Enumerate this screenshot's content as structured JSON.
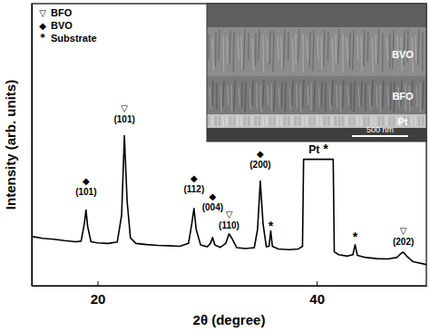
{
  "chart_data": {
    "type": "line",
    "xlabel": "2θ (degree)",
    "ylabel": "Intensity (arb. units)",
    "color": "#000000",
    "x": [
      14.0,
      15.0,
      16.0,
      17.0,
      18.0,
      18.5,
      18.8,
      18.95,
      19.1,
      19.4,
      20.0,
      21.0,
      21.8,
      22.2,
      22.45,
      22.7,
      23.0,
      23.5,
      24.5,
      25.5,
      26.5,
      27.5,
      28.3,
      28.6,
      28.8,
      29.0,
      29.4,
      30.0,
      30.3,
      30.5,
      30.7,
      31.2,
      31.7,
      32.0,
      32.3,
      32.7,
      33.5,
      34.3,
      34.6,
      34.85,
      35.1,
      35.4,
      35.65,
      35.8,
      35.95,
      36.5,
      37.5,
      38.3,
      38.7,
      38.8,
      41.5,
      41.6,
      42.0,
      42.8,
      43.3,
      43.5,
      43.7,
      44.5,
      45.5,
      46.5,
      47.3,
      47.7,
      47.9,
      48.2,
      48.8,
      50.0
    ],
    "values": [
      17.5,
      16.8,
      16.5,
      16.0,
      15.6,
      15.8,
      22,
      26.8,
      21,
      15.6,
      15.2,
      15.0,
      15.5,
      25,
      53.2,
      30,
      17,
      15,
      14.6,
      14.3,
      14.2,
      14.0,
      15.0,
      22,
      27.4,
      20,
      14.5,
      13.8,
      15,
      17.1,
      14.5,
      13.6,
      15,
      18.4,
      16.5,
      13.5,
      13.2,
      13.5,
      20,
      37.1,
      22,
      13.8,
      14,
      19.4,
      14,
      13,
      12.8,
      13,
      14,
      44.8,
      44.8,
      12,
      11,
      10.5,
      11,
      14.5,
      10.8,
      10,
      9.6,
      9.5,
      10,
      11.5,
      11.9,
      10.5,
      8.5,
      7.5
    ],
    "xlim": [
      14,
      50
    ],
    "xticks": [
      20,
      40
    ],
    "ylim": [
      0,
      100
    ],
    "tick_labels": "x",
    "grid": false,
    "legend": "upper left",
    "phases": [
      {
        "symbol": "▽",
        "name": "BFO"
      },
      {
        "symbol": "◆",
        "name": "BVO"
      },
      {
        "symbol": "*",
        "name": "Substrate"
      }
    ],
    "annotations": [
      {
        "symbol": "◆",
        "label": "(101)",
        "x": 18.95,
        "y": 32
      },
      {
        "symbol": "▽",
        "label": "(101)",
        "x": 22.45,
        "y": 58
      },
      {
        "symbol": "◆",
        "label": "(112)",
        "x": 28.8,
        "y": 33.2
      },
      {
        "symbol": "◆",
        "label": "(004)",
        "x": 30.5,
        "y": 26.8
      },
      {
        "symbol": "▽",
        "label": "(110)",
        "x": 32.0,
        "y": 20.3
      },
      {
        "symbol": "◆",
        "label": "(200)",
        "x": 34.85,
        "y": 41.9
      },
      {
        "symbol": "*",
        "x": 35.8,
        "y": 21
      },
      {
        "text": "Pt",
        "symbol": "*",
        "x": 40.15,
        "y": 46.8
      },
      {
        "symbol": "*",
        "x": 43.5,
        "y": 17.1
      },
      {
        "symbol": "▽",
        "label": "(202)",
        "x": 47.9,
        "y": 14.5
      }
    ],
    "inset": {
      "layers": [
        "BVO",
        "BFO",
        "Pt"
      ],
      "scale_bar": "500 nm"
    }
  }
}
